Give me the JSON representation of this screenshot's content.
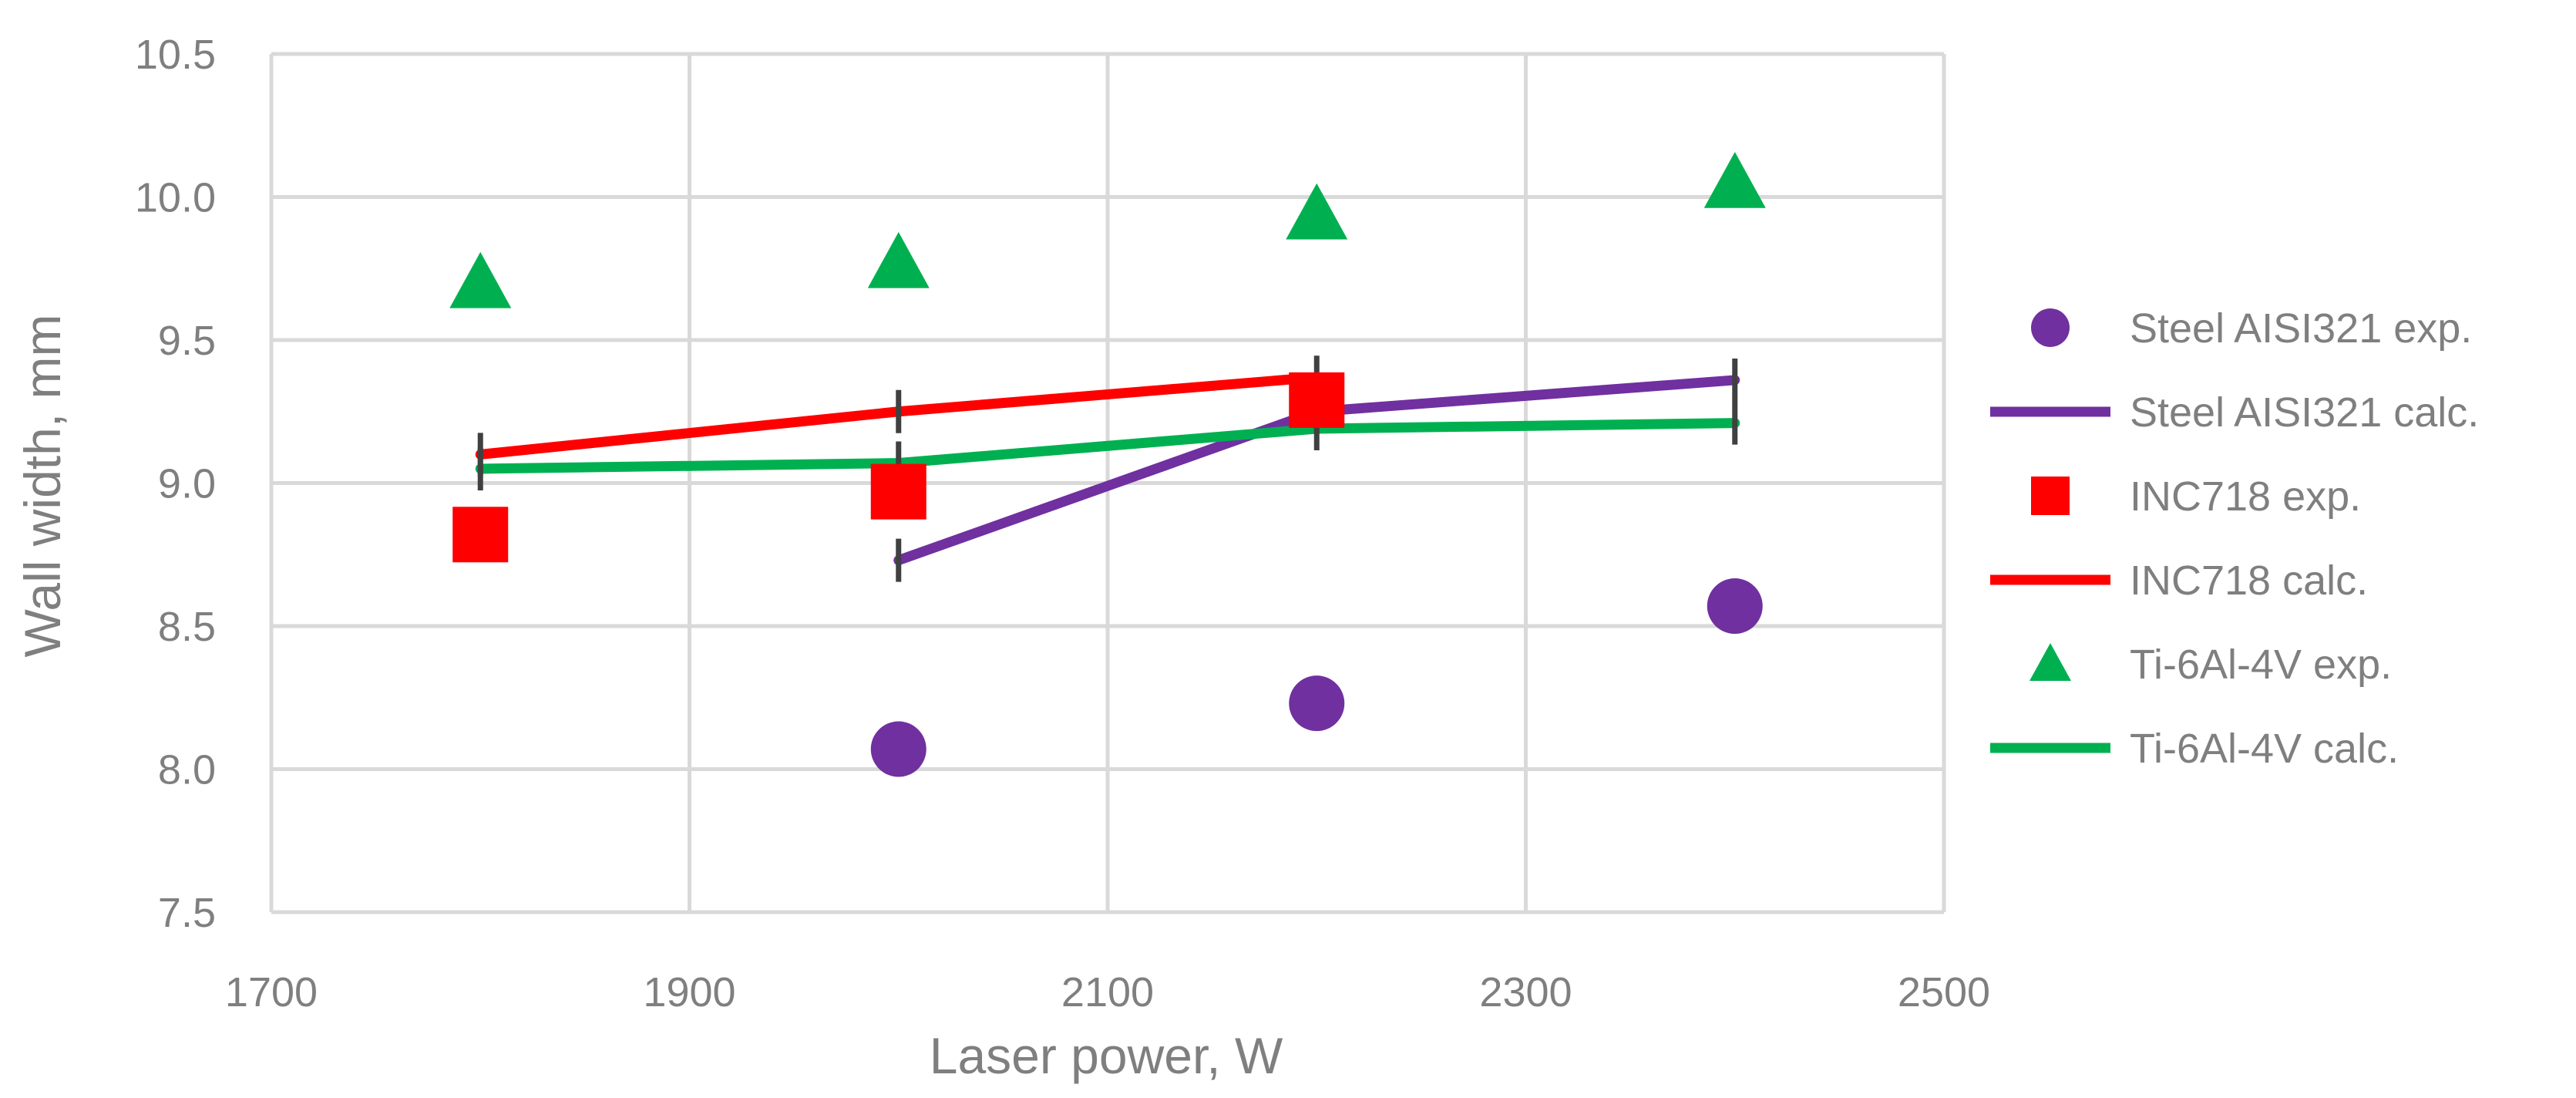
{
  "chart_data": {
    "type": "scatter",
    "title": "",
    "xlabel": "Laser power, W",
    "ylabel": "Wall width, mm",
    "xlim": [
      1700,
      2500
    ],
    "ylim": [
      7.5,
      10.5
    ],
    "xticks": [
      "1700",
      "1900",
      "2100",
      "2300",
      "2500"
    ],
    "yticks": [
      "7.5",
      "8.0",
      "8.5",
      "9.0",
      "9.5",
      "10.0",
      "10.5"
    ],
    "grid": true,
    "legend_position": "right",
    "series": [
      {
        "name": "Steel AISI321 exp.",
        "kind": "marker",
        "marker": "circle",
        "color": "#7030a0",
        "points": [
          [
            2000,
            8.07
          ],
          [
            2200,
            8.23
          ],
          [
            2400,
            8.57
          ]
        ]
      },
      {
        "name": "Steel AISI321 calc.",
        "kind": "line",
        "color": "#7030a0",
        "error_bars": true,
        "points": [
          [
            2000,
            8.73
          ],
          [
            2200,
            9.25
          ],
          [
            2400,
            9.36
          ]
        ]
      },
      {
        "name": "INC718 exp.",
        "kind": "marker",
        "marker": "square",
        "color": "#ff0000",
        "points": [
          [
            1800,
            8.82
          ],
          [
            2000,
            8.97
          ],
          [
            2200,
            9.29
          ]
        ]
      },
      {
        "name": "INC718 calc.",
        "kind": "line",
        "color": "#ff0000",
        "error_bars": true,
        "points": [
          [
            1800,
            9.1
          ],
          [
            2000,
            9.25
          ],
          [
            2200,
            9.37
          ]
        ]
      },
      {
        "name": "Ti-6Al-4V exp.",
        "kind": "marker",
        "marker": "triangle",
        "color": "#00b050",
        "points": [
          [
            1800,
            9.7
          ],
          [
            2000,
            9.77
          ],
          [
            2200,
            9.94
          ],
          [
            2400,
            10.05
          ]
        ]
      },
      {
        "name": "Ti-6Al-4V calc.",
        "kind": "line",
        "color": "#00b050",
        "error_bars": true,
        "points": [
          [
            1800,
            9.05
          ],
          [
            2000,
            9.07
          ],
          [
            2200,
            9.19
          ],
          [
            2400,
            9.21
          ]
        ]
      }
    ]
  }
}
